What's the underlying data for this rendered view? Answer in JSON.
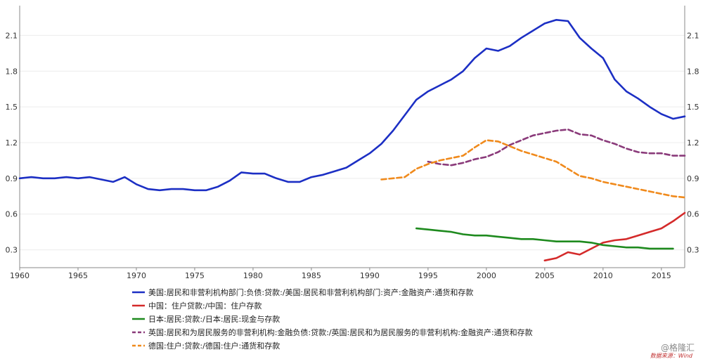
{
  "chart_data": {
    "type": "line",
    "xlim": [
      1960,
      2017
    ],
    "ylim": [
      0.15,
      2.35
    ],
    "x_ticks": [
      1960,
      1965,
      1970,
      1975,
      1980,
      1985,
      1990,
      1995,
      2000,
      2005,
      2010,
      2015
    ],
    "x_tick_labels": [
      "1960",
      "1965",
      "1970",
      "1975",
      "1980",
      "1985",
      "1990",
      "1995",
      "2000",
      "2005",
      "2010",
      "2015"
    ],
    "y_ticks": [
      0.3,
      0.6,
      0.9,
      1.2,
      1.5,
      1.8,
      2.1
    ],
    "y_tick_labels": [
      "0.3",
      "0.6",
      "0.9",
      "1.2",
      "1.5",
      "1.8",
      "2.1"
    ],
    "grid": true,
    "dual_y_axis": true,
    "legend_position": "bottom",
    "series": [
      {
        "name": "美国:居民和非营利机构部门:负债:贷款:/美国:居民和非营利机构部门:资产:金融资产:通货和存款",
        "color": "#1c2fc4",
        "dashed": false,
        "x": [
          1960,
          1961,
          1962,
          1963,
          1964,
          1965,
          1966,
          1967,
          1968,
          1969,
          1970,
          1971,
          1972,
          1973,
          1974,
          1975,
          1976,
          1977,
          1978,
          1979,
          1980,
          1981,
          1982,
          1983,
          1984,
          1985,
          1986,
          1987,
          1988,
          1989,
          1990,
          1991,
          1992,
          1993,
          1994,
          1995,
          1996,
          1997,
          1998,
          1999,
          2000,
          2001,
          2002,
          2003,
          2004,
          2005,
          2006,
          2007,
          2008,
          2009,
          2010,
          2011,
          2012,
          2013,
          2014,
          2015,
          2016,
          2017
        ],
        "values": [
          0.9,
          0.91,
          0.9,
          0.9,
          0.91,
          0.9,
          0.91,
          0.89,
          0.87,
          0.91,
          0.85,
          0.81,
          0.8,
          0.81,
          0.81,
          0.8,
          0.8,
          0.83,
          0.88,
          0.95,
          0.94,
          0.94,
          0.9,
          0.87,
          0.87,
          0.91,
          0.93,
          0.96,
          0.99,
          1.05,
          1.11,
          1.19,
          1.3,
          1.43,
          1.56,
          1.63,
          1.68,
          1.73,
          1.8,
          1.91,
          1.99,
          1.97,
          2.01,
          2.08,
          2.14,
          2.2,
          2.23,
          2.22,
          2.08,
          1.99,
          1.91,
          1.73,
          1.63,
          1.57,
          1.5,
          1.44,
          1.4,
          1.42
        ]
      },
      {
        "name": "中国：住户贷款:/中国：住户存款",
        "color": "#d42a2a",
        "dashed": false,
        "x": [
          2005,
          2006,
          2007,
          2008,
          2009,
          2010,
          2011,
          2012,
          2013,
          2014,
          2015,
          2016,
          2017
        ],
        "values": [
          0.21,
          0.23,
          0.28,
          0.26,
          0.31,
          0.36,
          0.38,
          0.39,
          0.42,
          0.45,
          0.48,
          0.54,
          0.61
        ]
      },
      {
        "name": "日本:居民:贷款:/日本:居民:现金与存款",
        "color": "#1e8a1e",
        "dashed": false,
        "x": [
          1994,
          1995,
          1996,
          1997,
          1998,
          1999,
          2000,
          2001,
          2002,
          2003,
          2004,
          2005,
          2006,
          2007,
          2008,
          2009,
          2010,
          2011,
          2012,
          2013,
          2014,
          2015,
          2016
        ],
        "values": [
          0.48,
          0.47,
          0.46,
          0.45,
          0.43,
          0.42,
          0.42,
          0.41,
          0.4,
          0.39,
          0.39,
          0.38,
          0.37,
          0.37,
          0.37,
          0.36,
          0.34,
          0.33,
          0.32,
          0.32,
          0.31,
          0.31,
          0.31
        ]
      },
      {
        "name": "英国:居民和为居民服务的非营利机构:金融负债:贷款:/英国:居民和为居民服务的非营利机构:金融资产:通货和存款",
        "color": "#8a3a7a",
        "dashed": true,
        "x": [
          1995,
          1996,
          1997,
          1998,
          1999,
          2000,
          2001,
          2002,
          2003,
          2004,
          2005,
          2006,
          2007,
          2008,
          2009,
          2010,
          2011,
          2012,
          2013,
          2014,
          2015,
          2016,
          2017
        ],
        "values": [
          1.04,
          1.02,
          1.01,
          1.03,
          1.06,
          1.08,
          1.12,
          1.18,
          1.22,
          1.26,
          1.28,
          1.3,
          1.31,
          1.27,
          1.26,
          1.22,
          1.19,
          1.15,
          1.12,
          1.11,
          1.11,
          1.09,
          1.09
        ]
      },
      {
        "name": "德国:住户:贷款:/德国:住户:通货和存款",
        "color": "#f08a1c",
        "dashed": true,
        "x": [
          1991,
          1992,
          1993,
          1994,
          1995,
          1996,
          1997,
          1998,
          1999,
          2000,
          2001,
          2002,
          2003,
          2004,
          2005,
          2006,
          2007,
          2008,
          2009,
          2010,
          2011,
          2012,
          2013,
          2014,
          2015,
          2016,
          2017
        ],
        "values": [
          0.89,
          0.9,
          0.91,
          0.98,
          1.02,
          1.05,
          1.07,
          1.09,
          1.16,
          1.22,
          1.21,
          1.17,
          1.13,
          1.1,
          1.07,
          1.04,
          0.98,
          0.92,
          0.9,
          0.87,
          0.85,
          0.83,
          0.81,
          0.79,
          0.77,
          0.75,
          0.74
        ]
      }
    ]
  },
  "watermark": "@格隆汇",
  "source_note": "数据来源：Wind"
}
